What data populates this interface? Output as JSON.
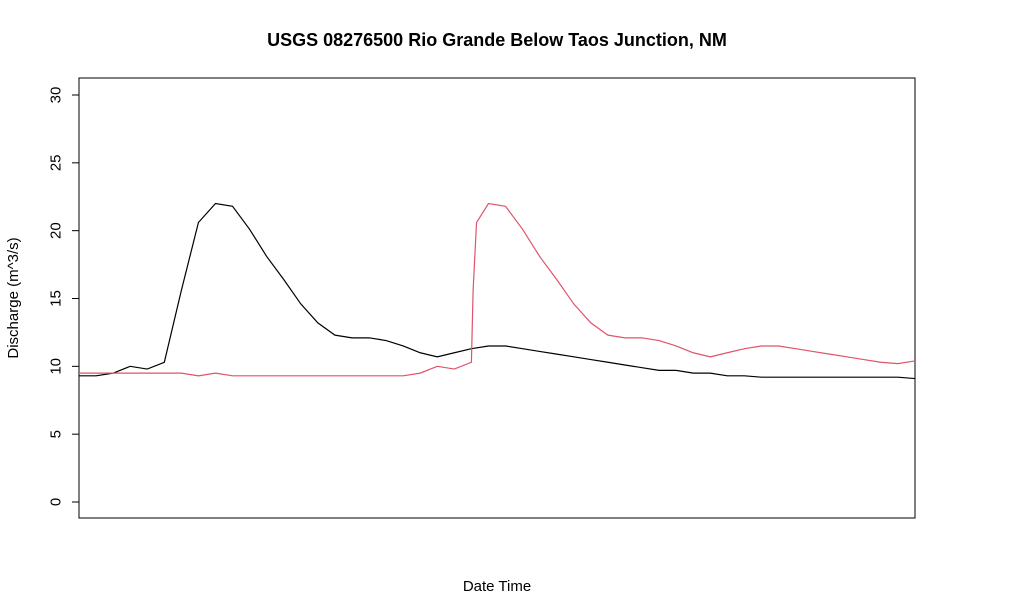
{
  "chart_data": {
    "type": "line",
    "title": "USGS 08276500 Rio Grande Below Taos Junction, NM",
    "xlabel": "Date Time",
    "ylabel": "Discharge (m^3/s)",
    "ylim": [
      0,
      30
    ],
    "yticks": [
      "0",
      "5",
      "10",
      "15",
      "20",
      "25",
      "30"
    ],
    "grid": false,
    "legend": "none",
    "series": [
      {
        "color": "#000000",
        "x": [
          0,
          1,
          2,
          3,
          4,
          5,
          6,
          7,
          8,
          9,
          10,
          11,
          12,
          13,
          14,
          15,
          16,
          17,
          18,
          19,
          20,
          21,
          22,
          23,
          24,
          25,
          26,
          27,
          28,
          29,
          30,
          31,
          32,
          33,
          34,
          35,
          36,
          37,
          38,
          39,
          40,
          41,
          42,
          43,
          44,
          45,
          46,
          47,
          48,
          49
        ],
        "values": [
          9.3,
          9.3,
          9.5,
          10.0,
          9.8,
          10.3,
          15.6,
          20.6,
          22.0,
          21.8,
          20.1,
          18.1,
          16.4,
          14.6,
          13.2,
          12.3,
          12.1,
          12.1,
          11.9,
          11.5,
          11.0,
          10.7,
          11.0,
          11.3,
          11.5,
          11.5,
          11.3,
          11.1,
          10.9,
          10.7,
          10.5,
          10.3,
          10.1,
          9.9,
          9.7,
          9.7,
          9.5,
          9.5,
          9.3,
          9.3,
          9.2,
          9.2,
          9.2,
          9.2,
          9.2,
          9.2,
          9.2,
          9.2,
          9.2,
          9.1
        ]
      },
      {
        "color": "#df536b",
        "x": [
          0,
          1,
          2,
          3,
          4,
          5,
          6,
          7,
          8,
          9,
          10,
          11,
          12,
          13,
          14,
          15,
          16,
          17,
          18,
          19,
          20,
          21,
          22,
          23,
          23.1,
          23.3,
          24,
          25,
          26,
          27,
          28,
          29,
          30,
          31,
          32,
          33,
          34,
          35,
          36,
          37,
          38,
          39,
          40,
          41,
          42,
          43,
          44,
          45,
          46,
          47,
          48,
          49
        ],
        "values": [
          9.5,
          9.5,
          9.5,
          9.5,
          9.5,
          9.5,
          9.5,
          9.3,
          9.5,
          9.3,
          9.3,
          9.3,
          9.3,
          9.3,
          9.3,
          9.3,
          9.3,
          9.3,
          9.3,
          9.3,
          9.5,
          10.0,
          9.8,
          10.3,
          15.6,
          20.6,
          22.0,
          21.8,
          20.1,
          18.1,
          16.4,
          14.6,
          13.2,
          12.3,
          12.1,
          12.1,
          11.9,
          11.5,
          11.0,
          10.7,
          11.0,
          11.3,
          11.5,
          11.5,
          11.3,
          11.1,
          10.9,
          10.7,
          10.5,
          10.3,
          10.2,
          10.4
        ]
      }
    ]
  }
}
